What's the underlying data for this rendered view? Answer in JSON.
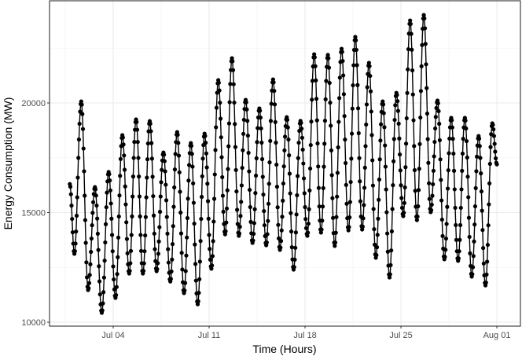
{
  "chart_data": {
    "type": "line",
    "markers": true,
    "xlabel": "Time (Hours)",
    "ylabel": "Energy Consumption (MW)",
    "ylim": [
      9640,
      24520
    ],
    "xlim": [
      "2018-06-30T17:00",
      "2018-08-01T18:00"
    ],
    "yticks": [
      10000,
      15000,
      20000
    ],
    "xticks": [
      {
        "date": "2018-07-04",
        "label": "Jul 04"
      },
      {
        "date": "2018-07-11",
        "label": "Jul 11"
      },
      {
        "date": "2018-07-18",
        "label": "Jul 18"
      },
      {
        "date": "2018-07-25",
        "label": "Jul 25"
      },
      {
        "date": "2018-08-01",
        "label": "Aug 01"
      }
    ],
    "grid": true,
    "interval": "1 hour",
    "series_color": "#000000",
    "start": {
      "time": "2018-06-30T20:00",
      "value": 16300
    },
    "end": {
      "time": "2018-08-01T00:00",
      "value": 17200
    },
    "trough_hour": 4,
    "peak_hour": 16,
    "daily_extremes": [
      {
        "day": "2018-07-01",
        "min": 13120,
        "max": 20070
      },
      {
        "day": "2018-07-02",
        "min": 11470,
        "max": 16160
      },
      {
        "day": "2018-07-03",
        "min": 10430,
        "max": 16850
      },
      {
        "day": "2018-07-04",
        "min": 11110,
        "max": 18530
      },
      {
        "day": "2018-07-05",
        "min": 12220,
        "max": 19250
      },
      {
        "day": "2018-07-06",
        "min": 12220,
        "max": 19170
      },
      {
        "day": "2018-07-07",
        "min": 12330,
        "max": 17740
      },
      {
        "day": "2018-07-08",
        "min": 11860,
        "max": 18670
      },
      {
        "day": "2018-07-09",
        "min": 11330,
        "max": 18170
      },
      {
        "day": "2018-07-10",
        "min": 10820,
        "max": 18600
      },
      {
        "day": "2018-07-11",
        "min": 12440,
        "max": 21040
      },
      {
        "day": "2018-07-12",
        "min": 14010,
        "max": 22040
      },
      {
        "day": "2018-07-13",
        "min": 13940,
        "max": 20140
      },
      {
        "day": "2018-07-14",
        "min": 13620,
        "max": 19750
      },
      {
        "day": "2018-07-15",
        "min": 13510,
        "max": 21070
      },
      {
        "day": "2018-07-16",
        "min": 13300,
        "max": 19350
      },
      {
        "day": "2018-07-17",
        "min": 12400,
        "max": 19180
      },
      {
        "day": "2018-07-18",
        "min": 13940,
        "max": 22220
      },
      {
        "day": "2018-07-19",
        "min": 14090,
        "max": 22190
      },
      {
        "day": "2018-07-20",
        "min": 13480,
        "max": 22470
      },
      {
        "day": "2018-07-21",
        "min": 14190,
        "max": 23010
      },
      {
        "day": "2018-07-22",
        "min": 14230,
        "max": 21830
      },
      {
        "day": "2018-07-23",
        "min": 12940,
        "max": 20070
      },
      {
        "day": "2018-07-24",
        "min": 12040,
        "max": 20460
      },
      {
        "day": "2018-07-25",
        "min": 14840,
        "max": 23760
      },
      {
        "day": "2018-07-26",
        "min": 14660,
        "max": 24010
      },
      {
        "day": "2018-07-27",
        "min": 15020,
        "max": 20110
      },
      {
        "day": "2018-07-28",
        "min": 12870,
        "max": 19320
      },
      {
        "day": "2018-07-29",
        "min": 12800,
        "max": 19320
      },
      {
        "day": "2018-07-30",
        "min": 12080,
        "max": 18490
      },
      {
        "day": "2018-07-31",
        "min": 11680,
        "max": 19070
      }
    ]
  }
}
